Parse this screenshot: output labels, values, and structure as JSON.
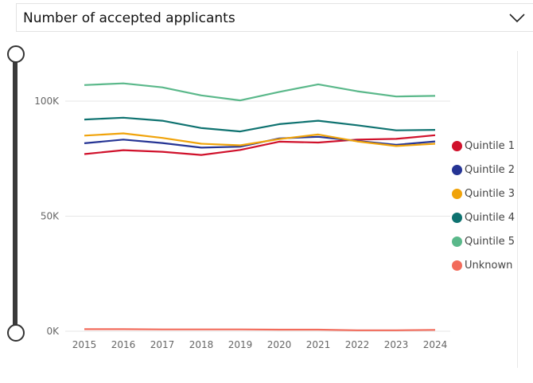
{
  "dropdown": {
    "label": "Number of accepted applicants"
  },
  "chart_data": {
    "type": "line",
    "title": "Number of accepted applicants",
    "xlabel": "",
    "ylabel": "",
    "x": [
      "2015",
      "2016",
      "2017",
      "2018",
      "2019",
      "2020",
      "2021",
      "2022",
      "2023",
      "2024"
    ],
    "ylim": [
      0,
      110000
    ],
    "yticks": [
      0,
      50000,
      100000
    ],
    "ytick_labels": [
      "0K",
      "50K",
      "100K"
    ],
    "grid": true,
    "legend_position": "right",
    "series": [
      {
        "name": "Quintile 1",
        "color": "#d0112b",
        "values": [
          77000,
          78700,
          78000,
          76600,
          78800,
          82400,
          82000,
          83300,
          83600,
          85200
        ]
      },
      {
        "name": "Quintile 2",
        "color": "#253494",
        "values": [
          81700,
          83300,
          81800,
          79800,
          80200,
          83800,
          84500,
          82700,
          81000,
          82500
        ]
      },
      {
        "name": "Quintile 3",
        "color": "#f0a30a",
        "values": [
          85000,
          86000,
          84000,
          81500,
          80800,
          83500,
          85500,
          82500,
          80500,
          81500
        ]
      },
      {
        "name": "Quintile 4",
        "color": "#0e7270",
        "values": [
          92000,
          92800,
          91500,
          88300,
          86800,
          90000,
          91500,
          89500,
          87300,
          87500
        ]
      },
      {
        "name": "Quintile 5",
        "color": "#5ab88a",
        "values": [
          107000,
          107700,
          106000,
          102500,
          100300,
          104000,
          107300,
          104300,
          102000,
          102300
        ]
      },
      {
        "name": "Unknown",
        "color": "#f26b5b",
        "values": [
          900,
          900,
          800,
          800,
          800,
          700,
          700,
          400,
          400,
          600
        ]
      }
    ]
  }
}
